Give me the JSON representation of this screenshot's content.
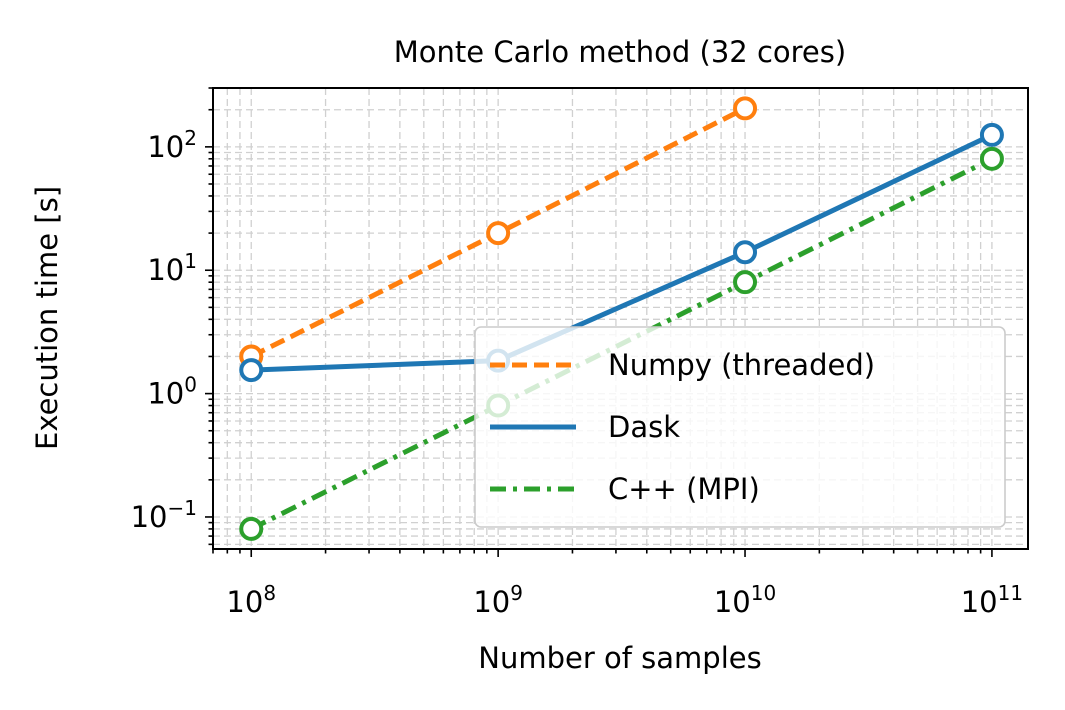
{
  "chart_data": {
    "type": "line",
    "title": "Monte Carlo method (32 cores)",
    "xlabel": "Number of samples",
    "ylabel": "Execution time [s]",
    "xscale": "log",
    "yscale": "log",
    "xlim": [
      70000000,
      140000000000
    ],
    "ylim": [
      0.055,
      300
    ],
    "grid": "major and minor, dashed",
    "legend_position": "lower-right",
    "x": [
      100000000,
      1000000000,
      10000000000,
      100000000000
    ],
    "x_tick_labels": [
      {
        "base": "10",
        "exp": "8"
      },
      {
        "base": "10",
        "exp": "9"
      },
      {
        "base": "10",
        "exp": "10"
      },
      {
        "base": "10",
        "exp": "11"
      }
    ],
    "y_tick_labels": [
      {
        "value": 0.1,
        "base": "10",
        "exp": "−1"
      },
      {
        "value": 1,
        "base": "10",
        "exp": "0"
      },
      {
        "value": 10,
        "base": "10",
        "exp": "1"
      },
      {
        "value": 100,
        "base": "10",
        "exp": "2"
      }
    ],
    "series": [
      {
        "name": "Numpy (threaded)",
        "color": "#ff7f0e",
        "dash": "dashed",
        "x": [
          100000000,
          1000000000,
          10000000000
        ],
        "values": [
          2.0,
          20,
          205
        ]
      },
      {
        "name": "Dask",
        "color": "#1f77b4",
        "dash": "solid",
        "x": [
          100000000,
          1000000000,
          10000000000,
          100000000000
        ],
        "values": [
          1.55,
          1.85,
          14,
          125
        ]
      },
      {
        "name": "C++ (MPI)",
        "color": "#2ca02c",
        "dash": "dashdot",
        "x": [
          100000000,
          1000000000,
          10000000000,
          100000000000
        ],
        "values": [
          0.08,
          0.8,
          8,
          80
        ]
      }
    ]
  }
}
